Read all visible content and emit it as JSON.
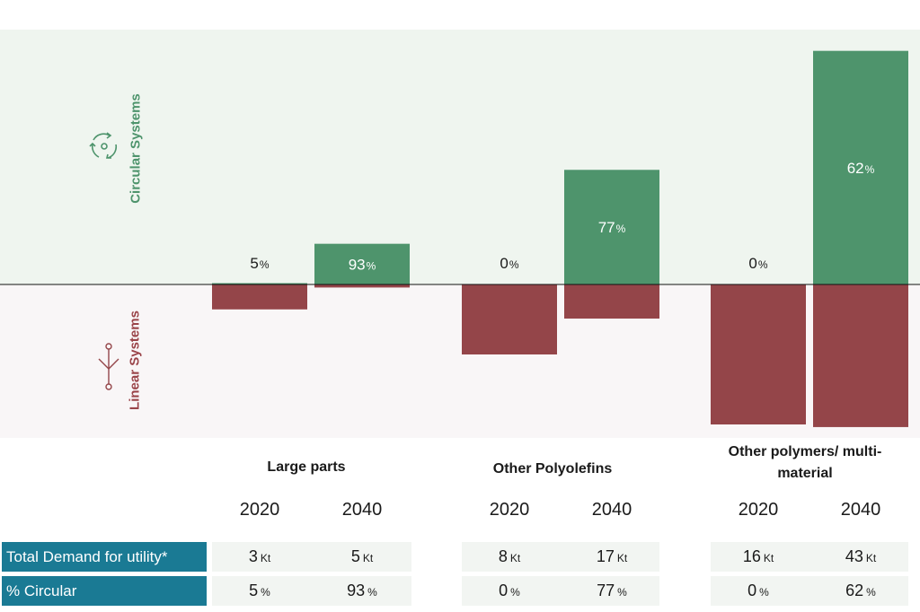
{
  "colors": {
    "circular": "#4e946c",
    "linear": "#944549",
    "circular_bg": "#eff5ef",
    "linear_bg": "#f9f6f7",
    "table_header": "#1a7a94"
  },
  "labels": {
    "circular": "Circular Systems",
    "linear": "Linear Systems"
  },
  "icons": {
    "circular": "recycle-arrows-icon",
    "linear": "linear-arrow-icon"
  },
  "chart_data": {
    "type": "bar",
    "title": "",
    "xlabel": "",
    "ylabel": "",
    "groups": [
      {
        "name": "Large parts",
        "bars": [
          {
            "year": "2020",
            "circular": 0.15,
            "linear": 2.85,
            "circular_pct": "5"
          },
          {
            "year": "2040",
            "circular": 4.65,
            "linear": 0.35,
            "circular_pct": "93"
          }
        ]
      },
      {
        "name": "Other Polyolefins",
        "bars": [
          {
            "year": "2020",
            "circular": 0,
            "linear": 8,
            "circular_pct": "0"
          },
          {
            "year": "2040",
            "circular": 13.1,
            "linear": 3.9,
            "circular_pct": "77"
          }
        ]
      },
      {
        "name": "Other polymers/ multi-material",
        "bars": [
          {
            "year": "2020",
            "circular": 0,
            "linear": 16,
            "circular_pct": "0"
          },
          {
            "year": "2040",
            "circular": 26.7,
            "linear": 16.3,
            "circular_pct": "62"
          }
        ]
      }
    ]
  },
  "table": {
    "rows": [
      {
        "label": "Total Demand for utility*",
        "unit": "Kt",
        "values": [
          "3",
          "5",
          "8",
          "17",
          "16",
          "43"
        ]
      },
      {
        "label": "% Circular",
        "unit": "%",
        "values": [
          "5",
          "93",
          "0",
          "77",
          "0",
          "62"
        ]
      }
    ]
  }
}
